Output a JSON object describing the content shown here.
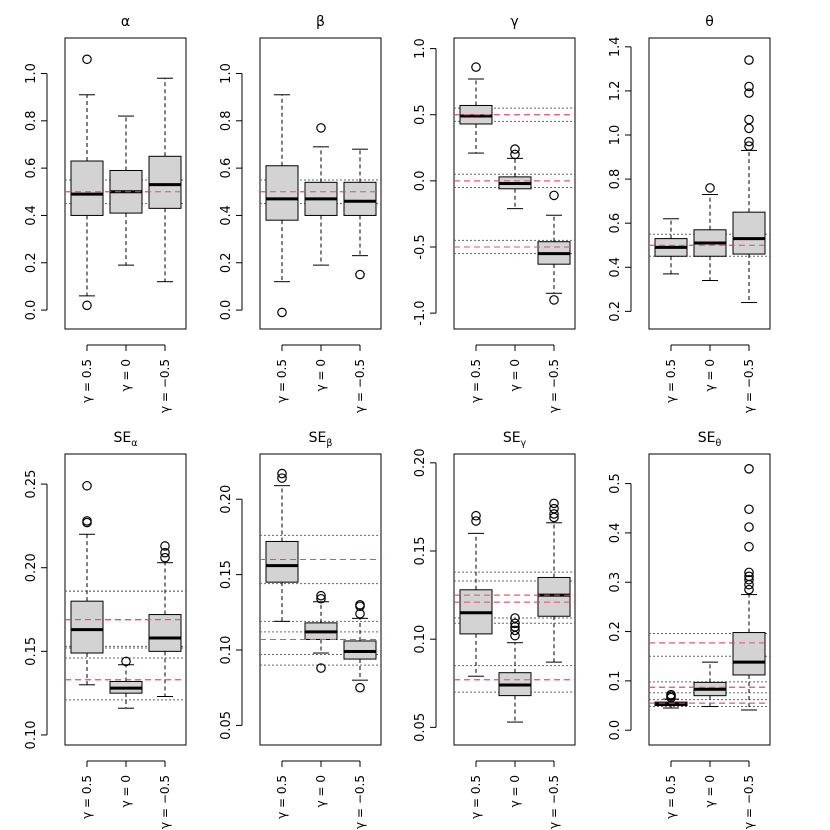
{
  "chart_data": [
    {
      "type": "boxplot",
      "title": "α",
      "title_sub": "",
      "categories": [
        "γ = 0.5",
        "γ = 0",
        "γ = −0.5"
      ],
      "y_ticks": [
        "0.0",
        "0.2",
        "0.4",
        "0.6",
        "0.8",
        "1.0"
      ],
      "ylim": [
        -0.08,
        1.15
      ],
      "ref_true": [
        0.5
      ],
      "ref_quantiles": [
        0.45,
        0.55
      ],
      "boxes": [
        {
          "whislo": 0.06,
          "q1": 0.4,
          "med": 0.49,
          "q3": 0.63,
          "whishi": 0.91,
          "fliers": [
            1.06,
            0.02
          ]
        },
        {
          "whislo": 0.19,
          "q1": 0.41,
          "med": 0.5,
          "q3": 0.59,
          "whishi": 0.82,
          "fliers": []
        },
        {
          "whislo": 0.12,
          "q1": 0.43,
          "med": 0.53,
          "q3": 0.65,
          "whishi": 0.98,
          "fliers": []
        }
      ]
    },
    {
      "type": "boxplot",
      "title": "β",
      "title_sub": "",
      "categories": [
        "γ = 0.5",
        "γ = 0",
        "γ = −0.5"
      ],
      "y_ticks": [
        "0.0",
        "0.2",
        "0.4",
        "0.6",
        "0.8",
        "1.0"
      ],
      "ylim": [
        -0.08,
        1.15
      ],
      "ref_true": [
        0.5
      ],
      "ref_quantiles": [
        0.45,
        0.55
      ],
      "boxes": [
        {
          "whislo": 0.12,
          "q1": 0.38,
          "med": 0.47,
          "q3": 0.61,
          "whishi": 0.91,
          "fliers": [
            -0.01
          ]
        },
        {
          "whislo": 0.19,
          "q1": 0.4,
          "med": 0.47,
          "q3": 0.54,
          "whishi": 0.69,
          "fliers": [
            0.77
          ]
        },
        {
          "whislo": 0.23,
          "q1": 0.4,
          "med": 0.46,
          "q3": 0.54,
          "whishi": 0.68,
          "fliers": [
            0.15
          ]
        }
      ]
    },
    {
      "type": "boxplot",
      "title": "γ",
      "title_sub": "",
      "categories": [
        "γ = 0.5",
        "γ = 0",
        "γ = −0.5"
      ],
      "y_ticks": [
        "-1.0",
        "-0.5",
        "0.0",
        "0.5",
        "1.0"
      ],
      "ylim": [
        -1.12,
        1.08
      ],
      "ref_true": [
        0.5,
        0.0,
        -0.5
      ],
      "ref_quantiles": [
        0.45,
        0.55,
        -0.05,
        0.05,
        -0.45,
        -0.55
      ],
      "boxes": [
        {
          "whislo": 0.21,
          "q1": 0.43,
          "med": 0.49,
          "q3": 0.57,
          "whishi": 0.77,
          "fliers": [
            0.86
          ]
        },
        {
          "whislo": -0.21,
          "q1": -0.06,
          "med": -0.02,
          "q3": 0.03,
          "whishi": 0.17,
          "fliers": [
            0.2,
            0.24
          ]
        },
        {
          "whislo": -0.85,
          "q1": -0.63,
          "med": -0.55,
          "q3": -0.46,
          "whishi": -0.26,
          "fliers": [
            -0.11,
            -0.9
          ]
        }
      ]
    },
    {
      "type": "boxplot",
      "title": "θ",
      "title_sub": "",
      "categories": [
        "γ = 0.5",
        "γ = 0",
        "γ = −0.5"
      ],
      "y_ticks": [
        "0.2",
        "0.4",
        "0.6",
        "0.8",
        "1.0",
        "1.2",
        "1.4"
      ],
      "ylim": [
        0.12,
        1.44
      ],
      "ref_true": [
        0.5
      ],
      "ref_quantiles": [
        0.45,
        0.55
      ],
      "boxes": [
        {
          "whislo": 0.37,
          "q1": 0.45,
          "med": 0.49,
          "q3": 0.53,
          "whishi": 0.62,
          "fliers": []
        },
        {
          "whislo": 0.34,
          "q1": 0.45,
          "med": 0.51,
          "q3": 0.57,
          "whishi": 0.73,
          "fliers": [
            0.76
          ]
        },
        {
          "whislo": 0.24,
          "q1": 0.46,
          "med": 0.53,
          "q3": 0.65,
          "whishi": 0.93,
          "fliers": [
            0.95,
            0.97,
            1.03,
            1.07,
            1.19,
            1.22,
            1.34
          ]
        }
      ]
    },
    {
      "type": "boxplot",
      "title": "SE",
      "title_sub": "α",
      "categories": [
        "γ = 0.5",
        "γ = 0",
        "γ = −0.5"
      ],
      "y_ticks": [
        "0.10",
        "0.15",
        "0.20",
        "0.25"
      ],
      "ylim": [
        0.094,
        0.268
      ],
      "ref_true": [
        0.169,
        0.133,
        0.169
      ],
      "ref_quantiles": [
        0.153,
        0.186,
        0.121,
        0.146,
        0.152,
        0.186
      ],
      "boxes": [
        {
          "whislo": 0.13,
          "q1": 0.149,
          "med": 0.163,
          "q3": 0.18,
          "whishi": 0.22,
          "fliers": [
            0.227,
            0.228,
            0.249
          ]
        },
        {
          "whislo": 0.116,
          "q1": 0.125,
          "med": 0.128,
          "q3": 0.132,
          "whishi": 0.142,
          "fliers": [
            0.144
          ]
        },
        {
          "whislo": 0.123,
          "q1": 0.15,
          "med": 0.158,
          "q3": 0.172,
          "whishi": 0.203,
          "fliers": [
            0.206,
            0.209,
            0.213
          ]
        }
      ]
    },
    {
      "type": "boxplot",
      "title": "SE",
      "title_sub": "β",
      "categories": [
        "γ = 0.5",
        "γ = 0",
        "γ = −0.5"
      ],
      "y_ticks": [
        "0.05",
        "0.10",
        "0.15",
        "0.20"
      ],
      "ylim": [
        0.037,
        0.23
      ],
      "ref_true": [
        0.16,
        0.107,
        0.107
      ],
      "ref_quantiles": [
        0.144,
        0.176,
        0.097,
        0.119,
        0.09,
        0.112
      ],
      "boxes": [
        {
          "whislo": 0.119,
          "q1": 0.145,
          "med": 0.156,
          "q3": 0.172,
          "whishi": 0.209,
          "fliers": [
            0.214,
            0.217
          ]
        },
        {
          "whislo": 0.098,
          "q1": 0.107,
          "med": 0.112,
          "q3": 0.118,
          "whishi": 0.132,
          "fliers": [
            0.134,
            0.136,
            0.088
          ]
        },
        {
          "whislo": 0.08,
          "q1": 0.094,
          "med": 0.099,
          "q3": 0.106,
          "whishi": 0.121,
          "fliers": [
            0.124,
            0.129,
            0.13,
            0.075
          ]
        }
      ]
    },
    {
      "type": "boxplot",
      "title": "SE",
      "title_sub": "γ",
      "categories": [
        "γ = 0.5",
        "γ = 0",
        "γ = −0.5"
      ],
      "y_ticks": [
        "0.05",
        "0.10",
        "0.15",
        "0.20"
      ],
      "ylim": [
        0.04,
        0.205
      ],
      "ref_true": [
        0.121,
        0.077,
        0.125
      ],
      "ref_quantiles": [
        0.109,
        0.133,
        0.07,
        0.085,
        0.112,
        0.138
      ],
      "boxes": [
        {
          "whislo": 0.079,
          "q1": 0.103,
          "med": 0.115,
          "q3": 0.128,
          "whishi": 0.16,
          "fliers": [
            0.167,
            0.17
          ]
        },
        {
          "whislo": 0.053,
          "q1": 0.068,
          "med": 0.074,
          "q3": 0.081,
          "whishi": 0.098,
          "fliers": [
            0.102,
            0.105,
            0.107,
            0.109,
            0.112
          ]
        },
        {
          "whislo": 0.087,
          "q1": 0.113,
          "med": 0.125,
          "q3": 0.135,
          "whishi": 0.166,
          "fliers": [
            0.169,
            0.171,
            0.174,
            0.177
          ]
        }
      ]
    },
    {
      "type": "boxplot",
      "title": "SE",
      "title_sub": "θ",
      "categories": [
        "γ = 0.5",
        "γ = 0",
        "γ = −0.5"
      ],
      "y_ticks": [
        "0.0",
        "0.1",
        "0.2",
        "0.3",
        "0.4",
        "0.5"
      ],
      "ylim": [
        -0.03,
        0.56
      ],
      "ref_true": [
        0.055,
        0.087,
        0.177
      ],
      "ref_quantiles": [
        0.048,
        0.062,
        0.076,
        0.098,
        0.15,
        0.196
      ],
      "boxes": [
        {
          "whislo": 0.045,
          "q1": 0.05,
          "med": 0.053,
          "q3": 0.057,
          "whishi": 0.063,
          "fliers": [
            0.066,
            0.069,
            0.072
          ]
        },
        {
          "whislo": 0.048,
          "q1": 0.07,
          "med": 0.083,
          "q3": 0.097,
          "whishi": 0.138,
          "fliers": []
        },
        {
          "whislo": 0.041,
          "q1": 0.112,
          "med": 0.138,
          "q3": 0.198,
          "whishi": 0.275,
          "fliers": [
            0.285,
            0.295,
            0.305,
            0.312,
            0.32,
            0.372,
            0.412,
            0.448,
            0.53
          ]
        }
      ]
    }
  ]
}
